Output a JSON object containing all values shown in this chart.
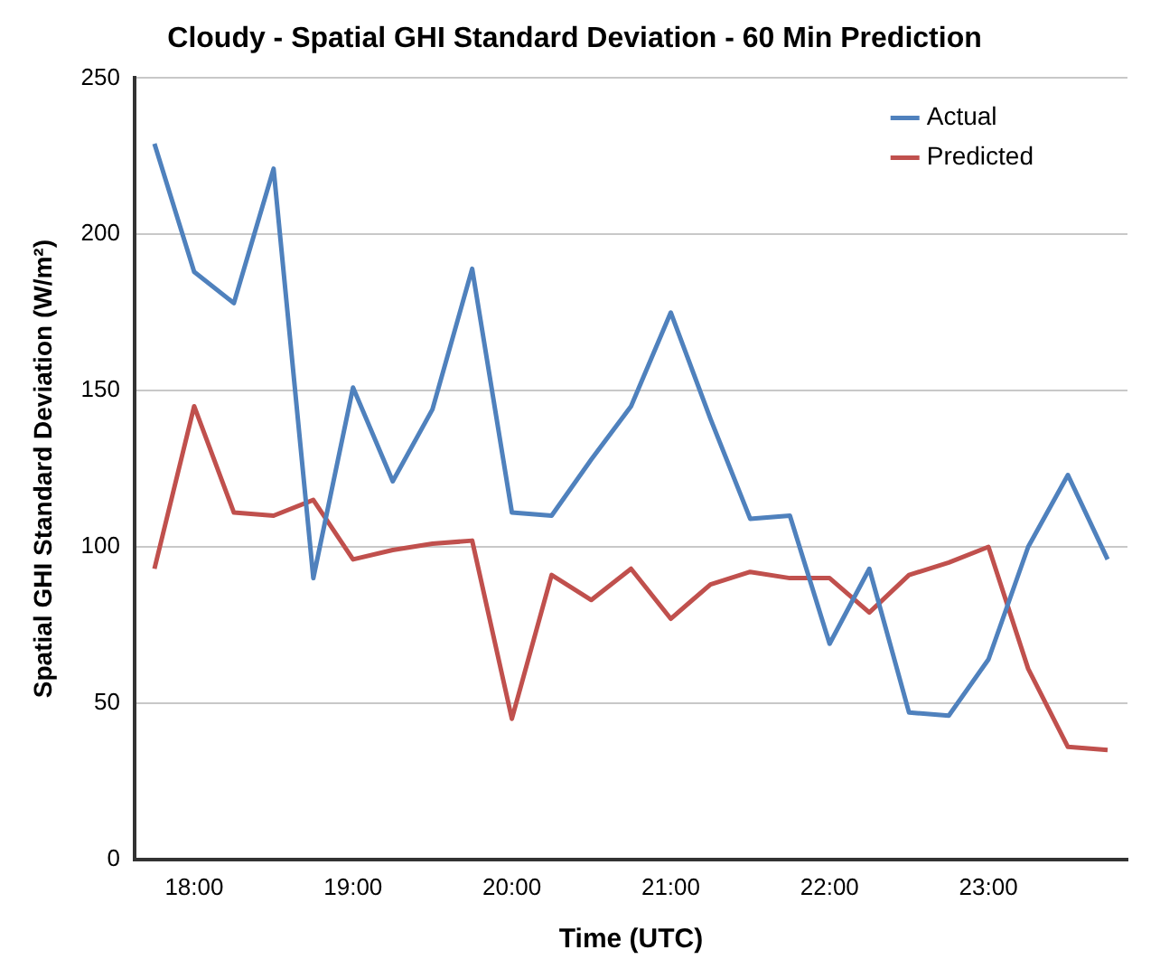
{
  "chart_data": {
    "type": "line",
    "title": "Cloudy - Spatial GHI Standard Deviation - 60 Min Prediction",
    "xlabel": "Time (UTC)",
    "ylabel": "Spatial GHI Standard Deviation (W/m²)",
    "categories": [
      null,
      "18:00",
      null,
      null,
      null,
      "19:00",
      null,
      null,
      null,
      "20:00",
      null,
      null,
      null,
      "21:00",
      null,
      null,
      null,
      "22:00",
      null,
      null,
      null,
      "23:00",
      null,
      null,
      null
    ],
    "series": [
      {
        "name": "Actual",
        "color": "#4f81bd",
        "values": [
          229,
          188,
          178,
          221,
          90,
          151,
          121,
          144,
          189,
          111,
          110,
          128,
          145,
          175,
          141,
          109,
          110,
          69,
          93,
          47,
          46,
          64,
          100,
          123,
          96
        ]
      },
      {
        "name": "Predicted",
        "color": "#c0504d",
        "values": [
          93,
          145,
          111,
          110,
          115,
          96,
          99,
          101,
          102,
          45,
          91,
          83,
          93,
          77,
          88,
          92,
          90,
          90,
          79,
          91,
          95,
          100,
          61,
          36,
          35
        ]
      }
    ],
    "ylim": [
      0,
      250
    ],
    "yticks": [
      0,
      50,
      100,
      150,
      200,
      250
    ],
    "grid": "y",
    "legend": "top right",
    "marker": "none",
    "line_style": "solid"
  }
}
